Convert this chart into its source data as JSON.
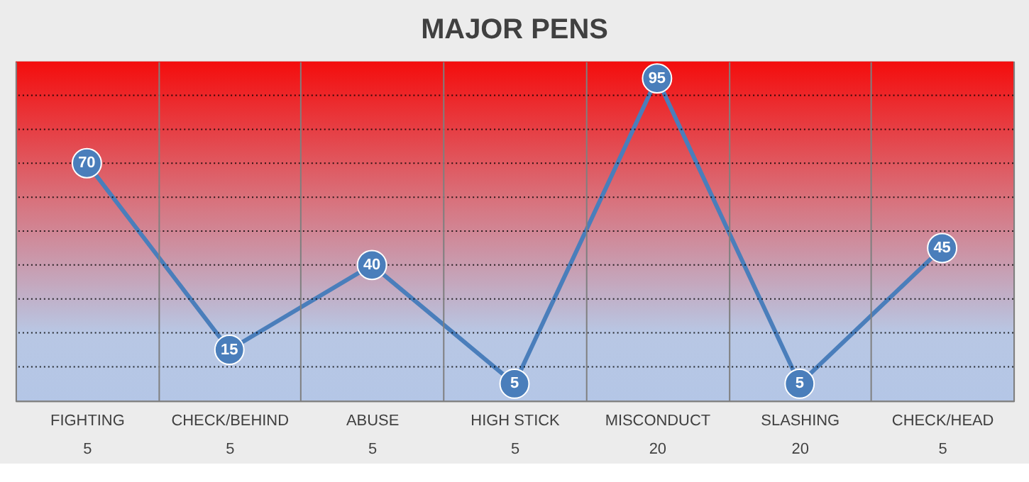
{
  "chart_data": {
    "type": "line",
    "title": "MAJOR PENS",
    "categories": [
      "FIGHTING\n5",
      "CHECK/BEHIND\n5",
      "ABUSE\n5",
      "HIGH STICK\n5",
      "MISCONDUCT\n20",
      "SLASHING\n20",
      "CHECK/HEAD\n5"
    ],
    "series": [
      {
        "color": "#4a7ebb",
        "values": [
          70,
          15,
          40,
          5,
          95,
          5,
          45
        ]
      }
    ],
    "ylim": [
      0,
      100
    ],
    "yticks": [
      {
        "value": 10,
        "label": null
      },
      {
        "value": 20,
        "label": null
      },
      {
        "value": 30,
        "label": null
      },
      {
        "value": 40,
        "label": null
      },
      {
        "value": 50,
        "label": null
      },
      {
        "value": 60,
        "label": null
      },
      {
        "value": 70,
        "label": null
      },
      {
        "value": 80,
        "label": null
      },
      {
        "value": 90,
        "label": null
      }
    ],
    "grid": "y",
    "tick_labels": "x",
    "marker": "circle",
    "line_style": "solid",
    "data_labels": true,
    "legend": false
  }
}
